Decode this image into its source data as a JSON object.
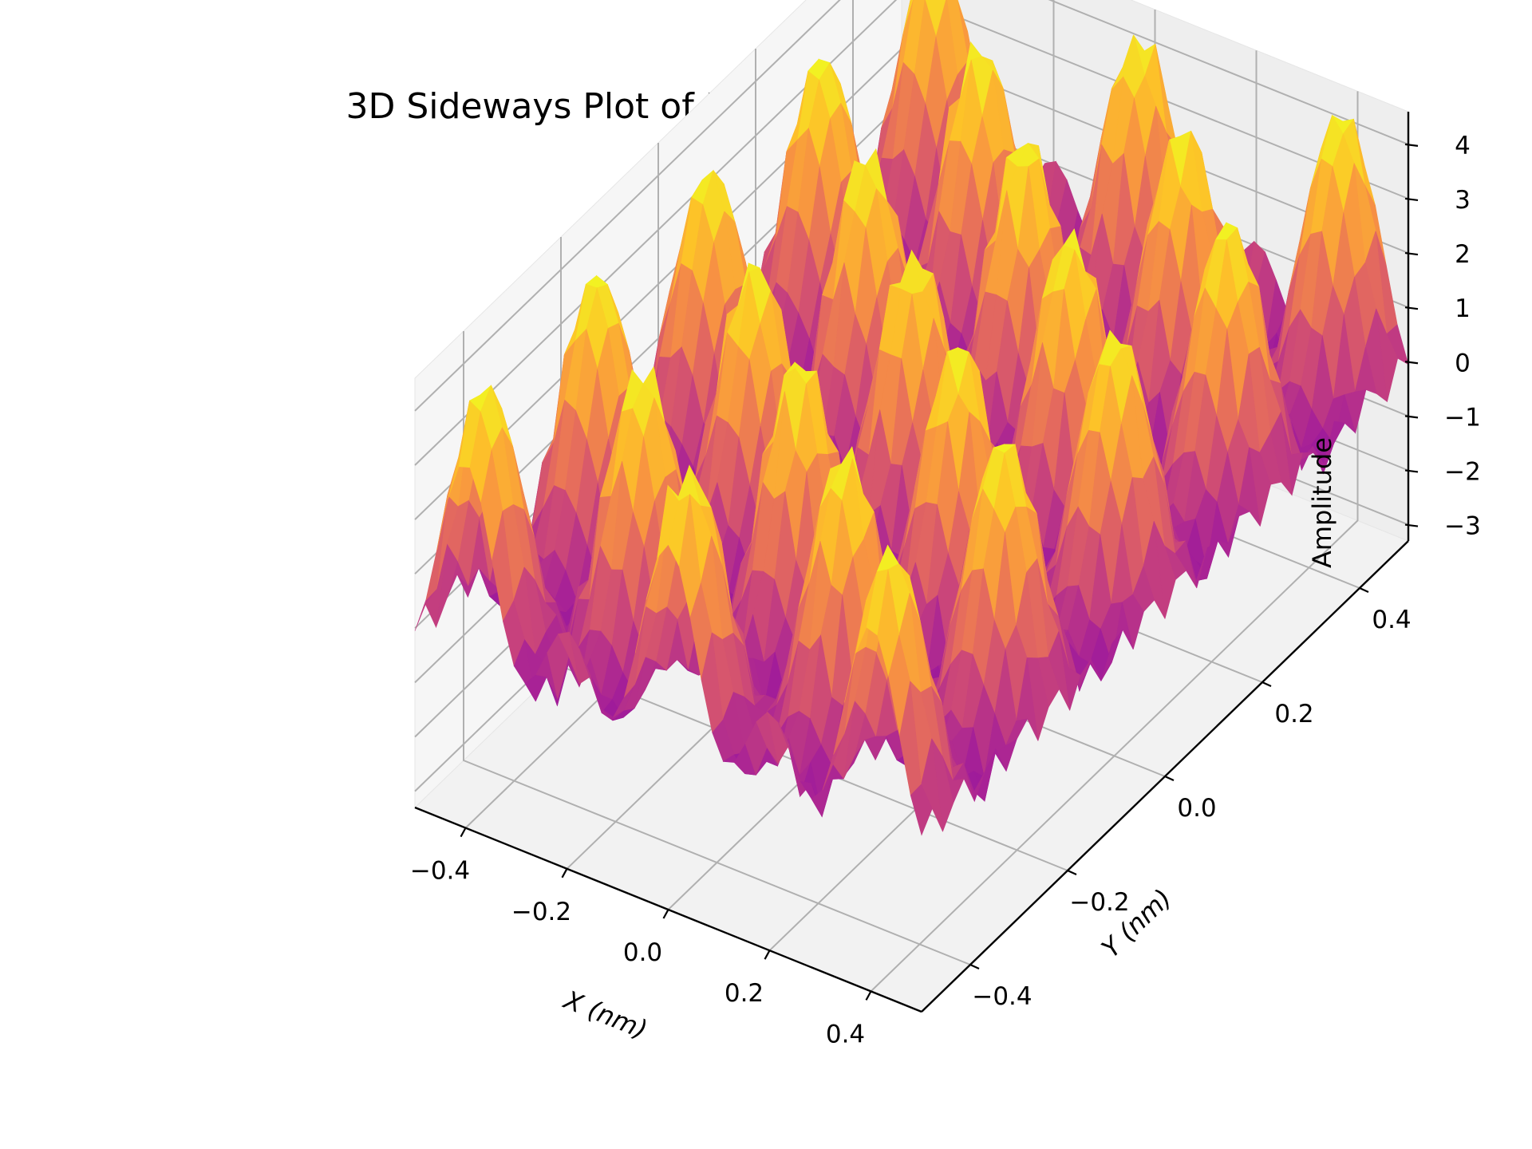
{
  "chart_data": {
    "type": "surface3d",
    "title": "3D Sideways Plot of HOPG Lattice in Real Space",
    "xlabel": "X (nm)",
    "ylabel": "Y (nm)",
    "zlabel": "Amplitude",
    "xlim": [
      -0.5,
      0.5
    ],
    "ylim": [
      -0.5,
      0.5
    ],
    "zlim": [
      -3.3,
      4.6
    ],
    "x_ticks": [
      -0.4,
      -0.2,
      0.0,
      0.2,
      0.4
    ],
    "y_ticks": [
      -0.4,
      -0.2,
      0.0,
      0.2,
      0.4
    ],
    "z_ticks": [
      -3,
      -2,
      -1,
      0,
      1,
      2,
      3,
      4
    ],
    "x_tick_labels": [
      "−0.4",
      "−0.2",
      "0.0",
      "0.2",
      "0.4"
    ],
    "y_tick_labels": [
      "−0.4",
      "−0.2",
      "0.0",
      "0.2",
      "0.4"
    ],
    "z_tick_labels": [
      "−3",
      "−2",
      "−1",
      "0",
      "1",
      "2",
      "3",
      "4"
    ],
    "colormap": "plasma",
    "grid": true
  }
}
